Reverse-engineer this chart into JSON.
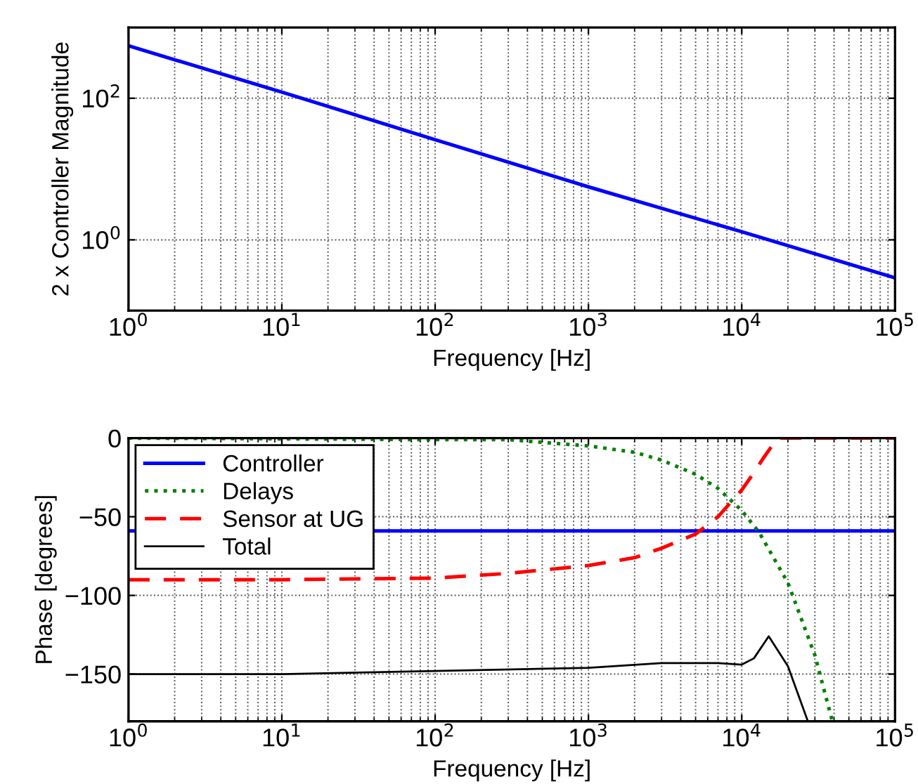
{
  "chart_data": [
    {
      "type": "line",
      "ylabel": "2 x Controller Magnitude",
      "xlabel": "Frequency [Hz]",
      "log": "xy",
      "grid": true,
      "legend": false,
      "xlim": [
        1,
        100000
      ],
      "xticks": [
        {
          "value": 1,
          "label": "10$^{0}$"
        },
        {
          "value": 10,
          "label": "10$^{1}$"
        },
        {
          "value": 100,
          "label": "10$^{2}$"
        },
        {
          "value": 1000,
          "label": "10$^{3}$"
        },
        {
          "value": 10000,
          "label": "10$^{4}$"
        },
        {
          "value": 100000,
          "label": "10$^{5}$"
        }
      ],
      "ylim": [
        0.1,
        1000
      ],
      "yticks": [
        {
          "value": 1,
          "label": "10$^{0}$"
        },
        {
          "value": 100,
          "label": "10$^{2}$"
        }
      ],
      "series": [
        {
          "color": "#0000ff",
          "line_style": "solid",
          "x": [
            1,
            10,
            100,
            1000,
            10000,
            100000
          ],
          "values": [
            550,
            122,
            26,
            5.6,
            1.3,
            0.29
          ]
        }
      ]
    },
    {
      "type": "line",
      "ylabel": "Phase [degrees]",
      "xlabel": "Frequency [Hz]",
      "log": "x",
      "grid": true,
      "legend": "top left",
      "xlim": [
        1,
        100000
      ],
      "xticks": [
        {
          "value": 1,
          "label": "10$^{0}$"
        },
        {
          "value": 10,
          "label": "10$^{1}$"
        },
        {
          "value": 100,
          "label": "10$^{2}$"
        },
        {
          "value": 1000,
          "label": "10$^{3}$"
        },
        {
          "value": 10000,
          "label": "10$^{4}$"
        },
        {
          "value": 100000,
          "label": "10$^{5}$"
        }
      ],
      "ylim": [
        -180,
        0
      ],
      "yticks": [
        {
          "value": -150,
          "label": "−150"
        },
        {
          "value": -100,
          "label": "−100"
        },
        {
          "value": -50,
          "label": "−50"
        },
        0
      ],
      "series": [
        {
          "name": "Controller",
          "color": "#0000ff",
          "line_style": "solid",
          "x": [
            1,
            100000
          ],
          "values": [
            -59,
            -59
          ]
        },
        {
          "name": "Delays",
          "color": "#008000",
          "line_style": "dotted",
          "x": [
            1,
            100,
            300,
            1000,
            2000,
            3000,
            5000,
            7000,
            10000,
            13000,
            20000,
            30000,
            39000
          ],
          "values": [
            0,
            -1,
            -1,
            -5,
            -9,
            -14,
            -23,
            -32,
            -46,
            -60,
            -92,
            -138,
            -180
          ]
        },
        {
          "name": "Sensor at UG",
          "color": "#ff0000",
          "line_style": "dashed",
          "x": [
            1,
            10,
            100,
            300,
            1000,
            2000,
            3000,
            5000,
            7000,
            10000,
            12000,
            14000,
            16000,
            17000,
            100000
          ],
          "values": [
            -90,
            -90,
            -89,
            -86,
            -81,
            -76,
            -70,
            -61,
            -50,
            -33,
            -22,
            -12,
            -4,
            0,
            0
          ]
        },
        {
          "name": "Total",
          "color": "#000000",
          "line_style": "solid",
          "x": [
            1,
            10,
            100,
            1000,
            3000,
            7000,
            10000,
            12000,
            15000,
            20000,
            27000
          ],
          "values": [
            -150,
            -150,
            -148,
            -146,
            -143,
            -143,
            -144,
            -140,
            -126,
            -145,
            -180
          ]
        }
      ]
    }
  ]
}
